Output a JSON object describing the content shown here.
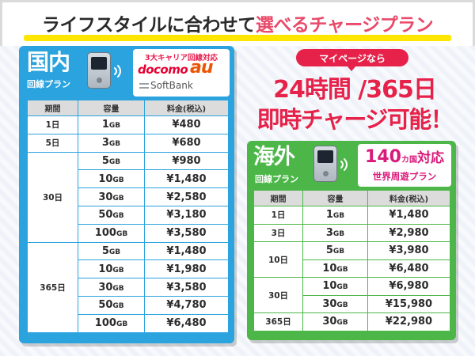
{
  "headline": {
    "text_before": "ライフスタイルに合わせて",
    "text_accent": "選べるチャージプラン"
  },
  "colors": {
    "domestic": "#2aa3df",
    "overseas": "#4cb748",
    "accent": "#e6224a",
    "highlight": "#ffe600"
  },
  "domestic": {
    "title": "国内",
    "subtitle": "回線プラン",
    "carriers_heading": "3大キャリア回線対応",
    "carrier_docomo": "docomo",
    "carrier_au": "au",
    "carrier_softbank": "SoftBank",
    "icons": [
      "pocket-wifi-router-icon",
      "wifi-signal-icon"
    ],
    "headers": [
      "期間",
      "容量",
      "料金(税込)"
    ],
    "groups": [
      {
        "period": "1日",
        "rows": [
          {
            "capacity": "1",
            "unit": "GB",
            "price": "¥480"
          }
        ]
      },
      {
        "period": "5日",
        "rows": [
          {
            "capacity": "3",
            "unit": "GB",
            "price": "¥680"
          }
        ]
      },
      {
        "period": "30日",
        "rows": [
          {
            "capacity": "5",
            "unit": "GB",
            "price": "¥980"
          },
          {
            "capacity": "10",
            "unit": "GB",
            "price": "¥1,480"
          },
          {
            "capacity": "30",
            "unit": "GB",
            "price": "¥2,580"
          },
          {
            "capacity": "50",
            "unit": "GB",
            "price": "¥3,180"
          },
          {
            "capacity": "100",
            "unit": "GB",
            "price": "¥3,580"
          }
        ]
      },
      {
        "period": "365日",
        "rows": [
          {
            "capacity": "5",
            "unit": "GB",
            "price": "¥1,480"
          },
          {
            "capacity": "10",
            "unit": "GB",
            "price": "¥1,980"
          },
          {
            "capacity": "30",
            "unit": "GB",
            "price": "¥3,580"
          },
          {
            "capacity": "50",
            "unit": "GB",
            "price": "¥4,780"
          },
          {
            "capacity": "100",
            "unit": "GB",
            "price": "¥6,480"
          }
        ]
      }
    ]
  },
  "promo": {
    "badge": "マイページなら",
    "line1": "24時間 /365日",
    "line2": "即時チャージ可能！"
  },
  "overseas": {
    "title": "海外",
    "subtitle": "回線プラン",
    "country_count": "140",
    "country_unit": "カ国",
    "country_suffix": "対応",
    "tour": "世界周遊プラン",
    "icons": [
      "pocket-wifi-router-icon",
      "wifi-signal-icon"
    ],
    "headers": [
      "期間",
      "容量",
      "料金(税込)"
    ],
    "groups": [
      {
        "period": "1日",
        "rows": [
          {
            "capacity": "1",
            "unit": "GB",
            "price": "¥1,480"
          }
        ]
      },
      {
        "period": "3日",
        "rows": [
          {
            "capacity": "3",
            "unit": "GB",
            "price": "¥2,980"
          }
        ]
      },
      {
        "period": "10日",
        "rows": [
          {
            "capacity": "5",
            "unit": "GB",
            "price": "¥3,980"
          },
          {
            "capacity": "10",
            "unit": "GB",
            "price": "¥6,480"
          }
        ]
      },
      {
        "period": "30日",
        "rows": [
          {
            "capacity": "10",
            "unit": "GB",
            "price": "¥6,980"
          },
          {
            "capacity": "30",
            "unit": "GB",
            "price": "¥15,980"
          }
        ]
      },
      {
        "period": "365日",
        "rows": [
          {
            "capacity": "30",
            "unit": "GB",
            "price": "¥22,980"
          }
        ]
      }
    ]
  }
}
